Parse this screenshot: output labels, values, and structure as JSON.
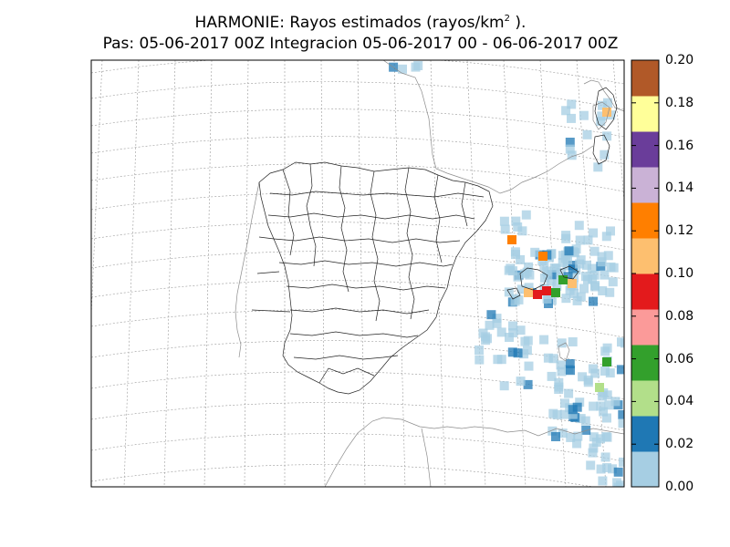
{
  "title": {
    "line1_prefix": "HARMONIE: Rayos estimados  (rayos/km",
    "line1_sup": "2",
    "line1_suffix": " ).",
    "line2": "Pas: 05-06-2017 00Z Integracion 05-06-2017 00 - 06-06-2017 00Z"
  },
  "colorbar": {
    "ticks": [
      "0.00",
      "0.02",
      "0.04",
      "0.06",
      "0.08",
      "0.10",
      "0.12",
      "0.14",
      "0.16",
      "0.18",
      "0.20"
    ],
    "min": 0.0,
    "max": 0.2,
    "colors": [
      "#a6cee3",
      "#1f78b4",
      "#b2df8a",
      "#33a02c",
      "#fb9a99",
      "#e31a1c",
      "#fdbf6f",
      "#ff7f00",
      "#cab2d6",
      "#6a3d9a",
      "#ffff99",
      "#b15928"
    ]
  },
  "lightning_cells": [
    {
      "region": "balearic",
      "value": 0.12
    },
    {
      "region": "balearic",
      "value": 0.1
    },
    {
      "region": "balearic",
      "value": 0.09
    },
    {
      "region": "balearic",
      "value": 0.085
    },
    {
      "region": "balearic",
      "value": 0.06
    },
    {
      "region": "balearic",
      "value": 0.05
    },
    {
      "region": "balearic",
      "value": 0.11
    },
    {
      "region": "valencia-coast",
      "value": 0.13
    },
    {
      "region": "corsica",
      "value": 0.11
    },
    {
      "region": "sardinia",
      "value": 0.05
    },
    {
      "region": "sardinia",
      "value": 0.04
    }
  ]
}
